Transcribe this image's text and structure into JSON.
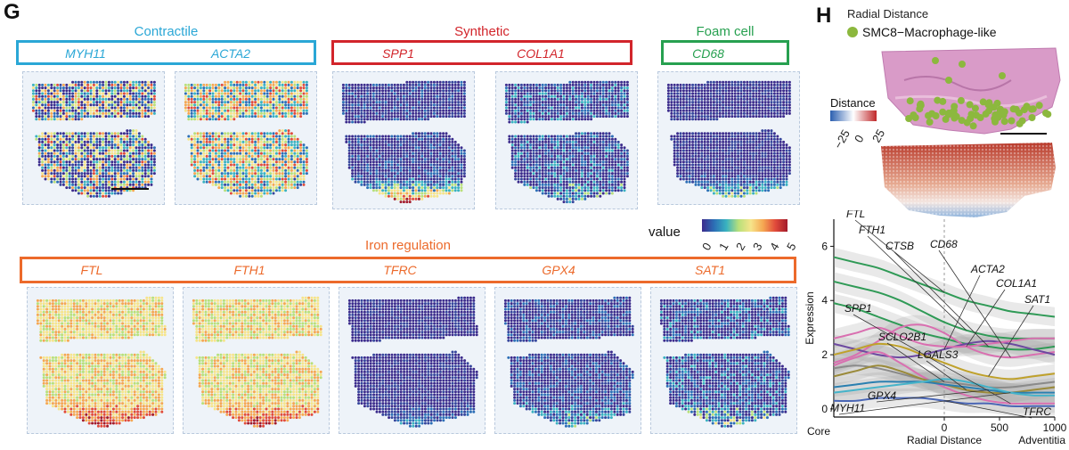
{
  "panel_g": {
    "letter": "G",
    "groups": [
      {
        "title": "Contractile",
        "color": "#2aa7d6",
        "genes": [
          "MYH11",
          "ACTA2"
        ]
      },
      {
        "title": "Synthetic",
        "color": "#d2252b",
        "genes": [
          "SPP1",
          "COL1A1"
        ]
      },
      {
        "title": "Foam cell",
        "color": "#27a050",
        "genes": [
          "CD68"
        ]
      },
      {
        "title": "Iron regulation",
        "color": "#ec6a2b",
        "genes": [
          "FTL",
          "FTH1",
          "TFRC",
          "GPX4",
          "SAT1"
        ]
      }
    ],
    "colorbar": {
      "label": "value",
      "ticks": [
        "0",
        "1",
        "2",
        "3",
        "4",
        "5"
      ]
    }
  },
  "panel_h": {
    "letter": "H",
    "title": "Radial Distance",
    "legend_item": "SMC8−Macrophage-like",
    "legend_color": "#8cb83e",
    "distance_bar": {
      "label": "Distance",
      "ticks": [
        "−25",
        "0",
        "25"
      ]
    }
  },
  "chart_data": {
    "type": "line",
    "title": "",
    "xlabel": "Radial Distance",
    "ylabel": "Expression",
    "x_ends": {
      "left": "Core",
      "right": "Adventitia"
    },
    "xlim": [
      -1000,
      1000
    ],
    "ylim": [
      -0.3,
      7
    ],
    "xticks": [
      "0",
      "500",
      "1000"
    ],
    "yticks": [
      "0",
      "2",
      "4",
      "6"
    ],
    "x": [
      -1000,
      -800,
      -600,
      -400,
      -200,
      0,
      200,
      400,
      600,
      800,
      1000
    ],
    "series": [
      {
        "name": "FTL",
        "color": "#2f9a56",
        "values": [
          5.6,
          5.4,
          5.2,
          4.9,
          4.6,
          4.3,
          4.0,
          3.8,
          3.6,
          3.5,
          3.4
        ]
      },
      {
        "name": "FTH1",
        "color": "#2f9a56",
        "values": [
          4.7,
          4.5,
          4.3,
          4.0,
          3.6,
          3.2,
          2.9,
          2.7,
          2.6,
          2.6,
          2.6
        ]
      },
      {
        "name": "CTSB",
        "color": "#2f9a56",
        "values": [
          3.9,
          3.7,
          3.4,
          3.1,
          2.8,
          2.6,
          2.4,
          2.3,
          2.2,
          2.2,
          2.3
        ]
      },
      {
        "name": "CD68",
        "color": "#d96fb0",
        "values": [
          1.7,
          2.0,
          2.5,
          3.0,
          3.1,
          2.8,
          2.3,
          2.0,
          1.9,
          2.0,
          2.1
        ]
      },
      {
        "name": "ACTA2",
        "color": "#6d4aa0",
        "values": [
          2.4,
          2.2,
          2.0,
          1.9,
          2.0,
          2.2,
          2.4,
          2.5,
          2.4,
          2.2,
          2.0
        ]
      },
      {
        "name": "COL1A1",
        "color": "#d96fb0",
        "values": [
          2.6,
          2.8,
          3.0,
          2.7,
          2.4,
          2.3,
          2.3,
          2.4,
          2.5,
          2.6,
          2.6
        ]
      },
      {
        "name": "SAT1",
        "color": "#bfa12b",
        "values": [
          2.0,
          2.2,
          2.4,
          2.3,
          2.0,
          1.7,
          1.4,
          1.2,
          1.1,
          1.2,
          1.3
        ]
      },
      {
        "name": "SPP1",
        "color": "#d96fb0",
        "values": [
          1.6,
          1.9,
          2.1,
          1.7,
          1.2,
          0.8,
          0.5,
          0.3,
          0.2,
          0.2,
          0.2
        ]
      },
      {
        "name": "SCLO2B1",
        "color": "#8a8a8a",
        "values": [
          1.5,
          1.6,
          1.5,
          1.3,
          1.1,
          1.0,
          0.9,
          0.8,
          0.8,
          0.9,
          1.0
        ]
      },
      {
        "name": "LGALS3",
        "color": "#9a8a3a",
        "values": [
          1.2,
          1.4,
          1.6,
          1.4,
          1.1,
          0.9,
          0.7,
          0.6,
          0.6,
          0.7,
          0.8
        ]
      },
      {
        "name": "GPX4",
        "color": "#2a7fb0",
        "values": [
          0.8,
          0.9,
          1.0,
          1.0,
          1.0,
          0.9,
          0.8,
          0.7,
          0.6,
          0.6,
          0.6
        ]
      },
      {
        "name": "MYH11",
        "color": "#45b3c9",
        "values": [
          0.6,
          0.7,
          0.8,
          0.9,
          1.0,
          1.1,
          1.0,
          0.8,
          0.6,
          0.5,
          0.5
        ]
      },
      {
        "name": "TFRC",
        "color": "#4a66b5",
        "values": [
          0.3,
          0.3,
          0.4,
          0.4,
          0.4,
          0.3,
          0.2,
          0.2,
          0.1,
          0.1,
          0.1
        ]
      }
    ]
  }
}
